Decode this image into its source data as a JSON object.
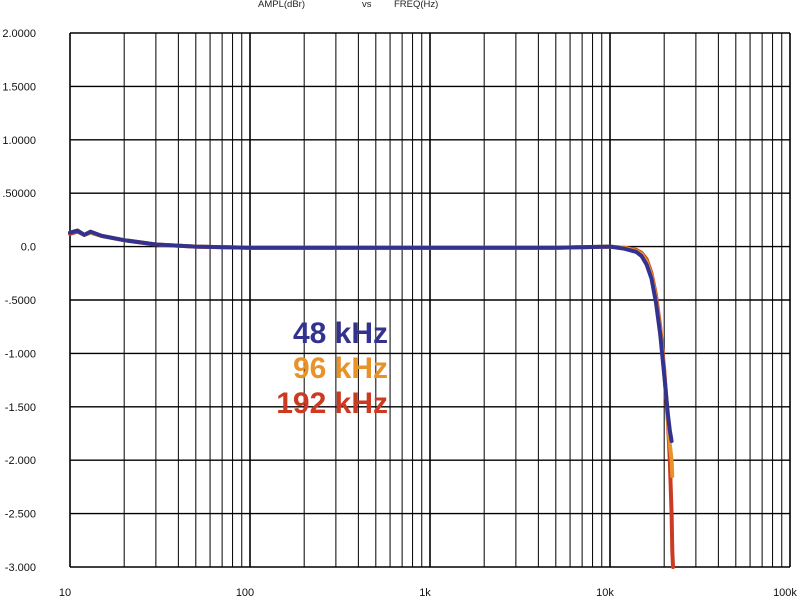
{
  "chart_data": {
    "type": "line",
    "header": [
      "AMPL(dBr)",
      "vs",
      "FREQ(Hz)"
    ],
    "x_scale": "log",
    "xlim": [
      10,
      100000
    ],
    "ylim": [
      -3.0,
      2.0
    ],
    "grid": true,
    "x_ticks": [
      10,
      100,
      1000,
      10000,
      100000
    ],
    "x_tick_labels": [
      "10",
      "100",
      "1k",
      "10k",
      "100k"
    ],
    "y_ticks": [
      2.0,
      1.5,
      1.0,
      0.5,
      0.0,
      -0.5,
      -1.0,
      -1.5,
      -2.0,
      -2.5,
      -3.0
    ],
    "y_tick_labels": [
      "2.0000",
      "1.5000",
      "1.0000",
      ".50000",
      "0.0",
      "-.5000",
      "-1.000",
      "-1.500",
      "-2.000",
      "-2.500",
      "-3.000"
    ],
    "legend_position": "center-left",
    "series": [
      {
        "name": "192 kHz",
        "color": "#cc3a22",
        "x": [
          10,
          11,
          12,
          13,
          15,
          20,
          30,
          50,
          100,
          1000,
          5000,
          10000,
          12000,
          14000,
          15000,
          16000,
          17000,
          18000,
          19000,
          20000,
          21000,
          21500,
          22000,
          22200,
          22400
        ],
        "y": [
          0.12,
          0.14,
          0.11,
          0.13,
          0.1,
          0.06,
          0.02,
          0.0,
          -0.01,
          -0.01,
          -0.01,
          0.0,
          -0.01,
          -0.03,
          -0.06,
          -0.12,
          -0.25,
          -0.45,
          -0.75,
          -1.15,
          -1.65,
          -2.0,
          -2.5,
          -2.85,
          -3.0
        ]
      },
      {
        "name": "96 kHz",
        "color": "#e8932a",
        "x": [
          10,
          11,
          12,
          13,
          15,
          20,
          30,
          50,
          100,
          1000,
          5000,
          10000,
          12000,
          14000,
          15000,
          16000,
          17000,
          18000,
          19000,
          20000,
          21000,
          21500,
          22000,
          22200
        ],
        "y": [
          0.13,
          0.15,
          0.11,
          0.13,
          0.1,
          0.06,
          0.02,
          0.0,
          -0.01,
          -0.01,
          -0.01,
          0.0,
          -0.01,
          -0.04,
          -0.07,
          -0.14,
          -0.27,
          -0.48,
          -0.78,
          -1.18,
          -1.62,
          -1.85,
          -2.0,
          -2.15
        ]
      },
      {
        "name": "48 kHz",
        "color": "#33338f",
        "x": [
          10,
          11,
          12,
          13,
          15,
          20,
          30,
          50,
          100,
          1000,
          5000,
          10000,
          12000,
          14000,
          15000,
          16000,
          17000,
          18000,
          19000,
          20000,
          21000,
          21500,
          22000
        ],
        "y": [
          0.13,
          0.15,
          0.11,
          0.14,
          0.1,
          0.06,
          0.02,
          0.0,
          -0.01,
          -0.01,
          -0.01,
          0.0,
          -0.02,
          -0.05,
          -0.09,
          -0.17,
          -0.3,
          -0.52,
          -0.82,
          -1.2,
          -1.58,
          -1.72,
          -1.82
        ]
      }
    ],
    "legend": [
      {
        "label": "48 kHz",
        "color": "#33338f"
      },
      {
        "label": "96 kHz",
        "color": "#e8932a"
      },
      {
        "label": "192 kHz",
        "color": "#cc3a22"
      }
    ]
  }
}
